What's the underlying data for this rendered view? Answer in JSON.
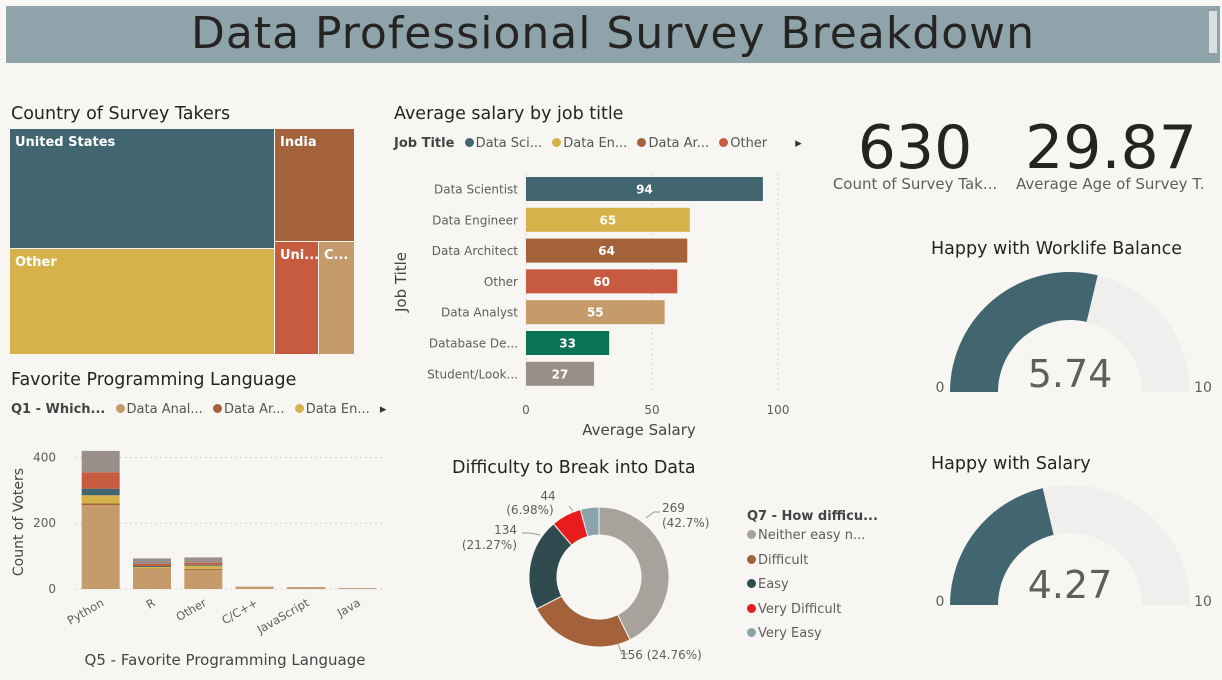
{
  "header": {
    "title": "Data Professional Survey Breakdown"
  },
  "colors": {
    "teal": "#41666f",
    "gold": "#d6b24a",
    "brown": "#a3623a",
    "rust": "#c65b3f",
    "tan": "#c59b6b",
    "green": "#0d7356",
    "taupe": "#9a8f88",
    "grey": "#a8a29c",
    "red": "#e81c1c",
    "bluegrey": "#8aa2ac"
  },
  "treemap": {
    "title": "Country of Survey Takers",
    "tiles": [
      {
        "label": "United States",
        "color": "#41666f"
      },
      {
        "label": "Other",
        "color": "#d6b24a"
      },
      {
        "label": "India",
        "color": "#a3623a"
      },
      {
        "label": "Uni...",
        "color": "#c65b3f"
      },
      {
        "label": "C...",
        "color": "#c59b6b"
      }
    ]
  },
  "salary_chart": {
    "title": "Average salary by job title",
    "legend_title": "Job Title",
    "legend_items": [
      {
        "label": "Data Sci...",
        "color": "#41666f"
      },
      {
        "label": "Data En...",
        "color": "#d6b24a"
      },
      {
        "label": "Data Ar...",
        "color": "#a3623a"
      },
      {
        "label": "Other",
        "color": "#c65b3f"
      }
    ],
    "legend_arrow": "▸"
  },
  "lang_chart": {
    "title": "Favorite Programming Language",
    "legend_title": "Q1 - Which...",
    "legend_items": [
      {
        "label": "Data Anal...",
        "color": "#c59b6b"
      },
      {
        "label": "Data Ar...",
        "color": "#a3623a"
      },
      {
        "label": "Data En...",
        "color": "#d6b24a"
      }
    ],
    "legend_arrow": "▸"
  },
  "difficulty_chart": {
    "title": "Difficulty to Break into Data",
    "legend_title": "Q7 - How difficu...",
    "legend_items": [
      {
        "label": "Neither easy n...",
        "color": "#a8a29c"
      },
      {
        "label": "Difficult",
        "color": "#a3623a"
      },
      {
        "label": "Easy",
        "color": "#2f4b4f"
      },
      {
        "label": "Very Difficult",
        "color": "#e81c1c"
      },
      {
        "label": "Very Easy",
        "color": "#8aa2ac"
      }
    ]
  },
  "cards": [
    {
      "value": "630",
      "label": "Count of Survey Tak..."
    },
    {
      "value": "29.87",
      "label": "Average Age of Survey T..."
    }
  ],
  "gauges": [
    {
      "title": "Happy with Worklife Balance",
      "value": 5.74,
      "value_text": "5.74",
      "min": 0,
      "max": 10,
      "min_label": "0",
      "max_label": "10"
    },
    {
      "title": "Happy with Salary",
      "value": 4.27,
      "value_text": "4.27",
      "min": 0,
      "max": 10,
      "min_label": "0",
      "max_label": "10"
    }
  ],
  "chart_data": [
    {
      "type": "treemap",
      "title": "Country of Survey Takers",
      "categories": [
        "United States",
        "Other",
        "India",
        "Uni...",
        "C..."
      ]
    },
    {
      "type": "bar",
      "orientation": "horizontal",
      "title": "Average salary by job title",
      "xlabel": "Average Salary",
      "ylabel": "Job Title",
      "categories": [
        "Data Scientist",
        "Data Engineer",
        "Data Architect",
        "Other",
        "Data Analyst",
        "Database De...",
        "Student/Look..."
      ],
      "values": [
        94,
        65,
        64,
        60,
        55,
        33,
        27
      ],
      "colors": [
        "#41666f",
        "#d6b24a",
        "#a3623a",
        "#c65b3f",
        "#c59b6b",
        "#0d7356",
        "#9a8f88"
      ],
      "xlim": [
        0,
        100
      ],
      "xticks": [
        0,
        50,
        100
      ],
      "grid": true
    },
    {
      "type": "bar",
      "stacked": true,
      "title": "Favorite Programming Language",
      "xlabel": "Q5 - Favorite Programming Language",
      "ylabel": "Count of Voters",
      "categories": [
        "Python",
        "R",
        "Other",
        "C/C++",
        "JavaScript",
        "Java"
      ],
      "ylim": [
        0,
        450
      ],
      "yticks": [
        0,
        200,
        400
      ],
      "grid": true,
      "series": [
        {
          "name": "Data Anal...",
          "color": "#c59b6b",
          "values": [
            255,
            60,
            58,
            6,
            5,
            2
          ]
        },
        {
          "name": "Data Ar...",
          "color": "#a3623a",
          "values": [
            5,
            2,
            3,
            0,
            0,
            0
          ]
        },
        {
          "name": "Data En...",
          "color": "#d6b24a",
          "values": [
            25,
            5,
            10,
            0,
            0,
            0
          ]
        },
        {
          "color": "#41666f",
          "values": [
            20,
            3,
            3,
            0,
            0,
            0
          ]
        },
        {
          "color": "#c65b3f",
          "values": [
            50,
            6,
            6,
            0,
            0,
            0
          ]
        },
        {
          "color": "#9a8f88",
          "values": [
            65,
            17,
            16,
            1,
            1,
            1
          ]
        }
      ]
    },
    {
      "type": "donut",
      "title": "Difficulty to Break into Data",
      "categories": [
        "Neither easy n...",
        "Difficult",
        "Easy",
        "Very Difficult",
        "Very Easy"
      ],
      "values": [
        269,
        156,
        134,
        44,
        27
      ],
      "colors": [
        "#a8a29c",
        "#a3623a",
        "#2f4b4f",
        "#e81c1c",
        "#8aa2ac"
      ],
      "data_labels": [
        {
          "count": "269",
          "pct": "(42.7%)"
        },
        {
          "count": "156 (24.76%)"
        },
        {
          "count": "134",
          "pct": "(21.27%)"
        },
        {
          "count": "44",
          "pct": "(6.98%)"
        }
      ]
    }
  ]
}
